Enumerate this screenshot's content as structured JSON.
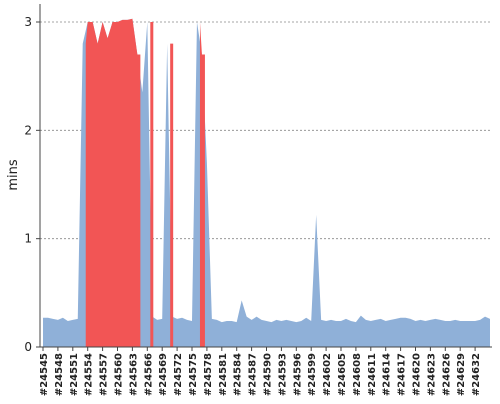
{
  "chart_data": {
    "type": "area",
    "title": "",
    "xlabel": "",
    "ylabel": "mins",
    "ylim": [
      0,
      3
    ],
    "yticks": [
      0,
      1,
      2,
      3
    ],
    "grid": true,
    "legend": "none",
    "colors": {
      "series": "#8fb0d8",
      "highlight": "#f25555",
      "grid": "#888888",
      "axis": "#444444"
    },
    "highlight_threshold": 2.5,
    "x_categories": [
      "#24545",
      "#24546",
      "#24547",
      "#24548",
      "#24549",
      "#24550",
      "#24551",
      "#24552",
      "#24553",
      "#24554",
      "#24555",
      "#24556",
      "#24557",
      "#24558",
      "#24559",
      "#24560",
      "#24561",
      "#24562",
      "#24563",
      "#24564",
      "#24565",
      "#24566",
      "#24567",
      "#24568",
      "#24569",
      "#24570",
      "#24571",
      "#24572",
      "#24573",
      "#24574",
      "#24575",
      "#24576",
      "#24577",
      "#24578",
      "#24579",
      "#24580",
      "#24581",
      "#24582",
      "#24583",
      "#24584",
      "#24585",
      "#24586",
      "#24587",
      "#24588",
      "#24589",
      "#24590",
      "#24591",
      "#24592",
      "#24593",
      "#24594",
      "#24595",
      "#24596",
      "#24597",
      "#24598",
      "#24599",
      "#24600",
      "#24601",
      "#24602",
      "#24603",
      "#24604",
      "#24605",
      "#24606",
      "#24607",
      "#24608",
      "#24609",
      "#24610",
      "#24611",
      "#24612",
      "#24613",
      "#24614",
      "#24615",
      "#24616",
      "#24617",
      "#24618",
      "#24619",
      "#24620",
      "#24621",
      "#24622",
      "#24623",
      "#24624",
      "#24625",
      "#24626",
      "#24627",
      "#24628",
      "#24629",
      "#24630",
      "#24631",
      "#24632",
      "#24633",
      "#24634",
      "#24635"
    ],
    "tick_labels": [
      "#24545",
      "#24548",
      "#24551",
      "#24554",
      "#24557",
      "#24560",
      "#24563",
      "#24566",
      "#24569",
      "#24572",
      "#24575",
      "#24578",
      "#24581",
      "#24584",
      "#24587",
      "#24590",
      "#24593",
      "#24596",
      "#24599",
      "#24602",
      "#24605",
      "#24608",
      "#24611",
      "#24614",
      "#24617",
      "#24620",
      "#24623",
      "#24626",
      "#24629",
      "#24632"
    ],
    "series": [
      {
        "values": [
          0.27,
          0.27,
          0.26,
          0.25,
          0.27,
          0.24,
          0.25,
          0.26,
          2.8,
          3.0,
          3.0,
          2.8,
          3.0,
          2.85,
          3.0,
          3.0,
          3.02,
          3.02,
          3.03,
          2.7,
          2.35,
          3.0,
          0.28,
          0.25,
          0.26,
          2.8,
          0.28,
          0.26,
          0.27,
          0.25,
          0.24,
          3.0,
          2.7,
          1.7,
          0.26,
          0.25,
          0.23,
          0.24,
          0.24,
          0.23,
          0.43,
          0.28,
          0.25,
          0.28,
          0.25,
          0.24,
          0.23,
          0.25,
          0.24,
          0.25,
          0.24,
          0.23,
          0.24,
          0.27,
          0.24,
          1.22,
          0.25,
          0.24,
          0.25,
          0.24,
          0.24,
          0.26,
          0.24,
          0.23,
          0.29,
          0.25,
          0.24,
          0.25,
          0.26,
          0.24,
          0.25,
          0.26,
          0.27,
          0.27,
          0.26,
          0.24,
          0.25,
          0.24,
          0.25,
          0.26,
          0.25,
          0.24,
          0.24,
          0.25,
          0.24,
          0.24,
          0.24,
          0.24,
          0.25,
          0.28,
          0.26
        ]
      }
    ]
  }
}
